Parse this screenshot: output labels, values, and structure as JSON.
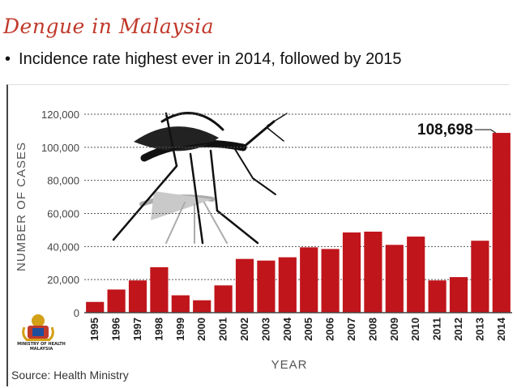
{
  "slide": {
    "title": "Dengue in Malaysia",
    "bullet": "Incidence rate highest ever in 2014, followed by 2015"
  },
  "ministry": {
    "caption_line1": "MINISTRY OF HEALTH",
    "caption_line2": "MALAYSIA",
    "seal_icon": "malaysia-coat-of-arms-icon"
  },
  "source": "Source: Health Ministry",
  "colors": {
    "bar": "#c0151b",
    "title": "#c0392b",
    "grid": "#555555"
  },
  "chart_data": {
    "type": "bar",
    "title": "",
    "xlabel": "YEAR",
    "ylabel": "NUMBER OF CASES",
    "categories": [
      "1995",
      "1996",
      "1997",
      "1998",
      "1999",
      "2000",
      "2001",
      "2002",
      "2003",
      "2004",
      "2005",
      "2006",
      "2007",
      "2008",
      "2009",
      "2010",
      "2011",
      "2012",
      "2013",
      "2014"
    ],
    "values": [
      6500,
      14000,
      19500,
      27500,
      10500,
      7500,
      16500,
      32500,
      31500,
      33500,
      39500,
      38500,
      48500,
      49000,
      41000,
      46000,
      19500,
      21500,
      43500,
      108698
    ],
    "ylim": [
      0,
      120000
    ],
    "yticks": [
      0,
      20000,
      40000,
      60000,
      80000,
      100000,
      120000
    ],
    "ytick_labels": [
      "0",
      "20,000",
      "40,000",
      "60,000",
      "80,000",
      "100,000",
      "120,000"
    ],
    "grid": true,
    "annotation": {
      "category": "2014",
      "label": "108,698"
    },
    "background_image": "mosquito-icon"
  }
}
